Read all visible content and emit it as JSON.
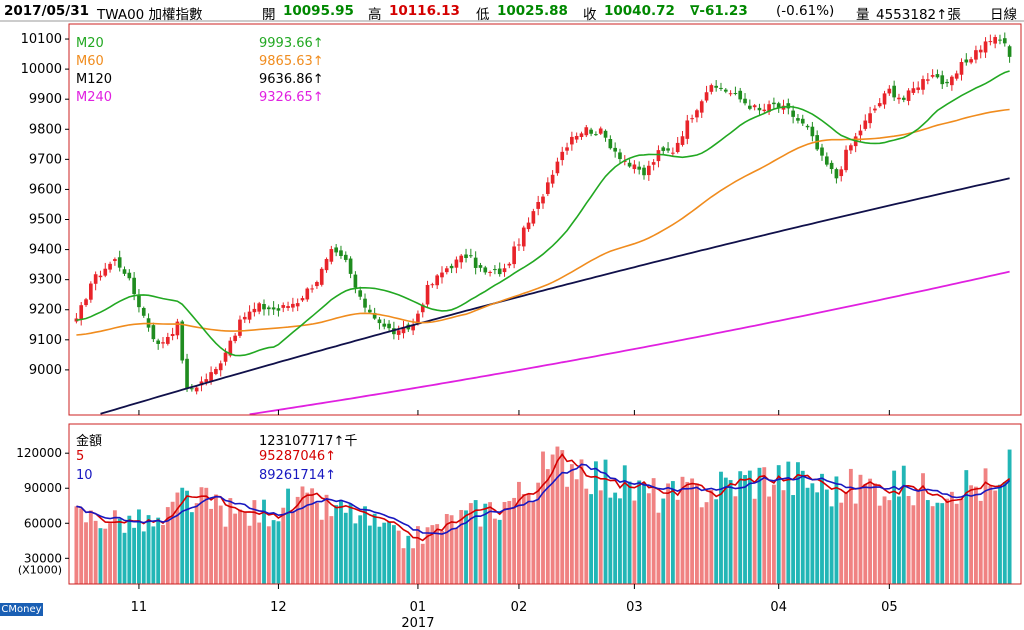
{
  "header": {
    "date": "2017/05/31",
    "symbol": "TWA00 加權指數",
    "open_label": "開",
    "open": "10095.95",
    "high_label": "高",
    "high": "10116.13",
    "low_label": "低",
    "low": "10025.88",
    "close_label": "收",
    "close": "10040.72",
    "change": "∇-61.23",
    "change_pct": "(-0.61%)",
    "volume_label": "量",
    "volume": "4553182↑張",
    "period": "日線"
  },
  "price_legend": [
    {
      "name": "M20",
      "value": "9993.66↑",
      "color": "#22a822"
    },
    {
      "name": "M60",
      "value": "9865.63↑",
      "color": "#f08c1e"
    },
    {
      "name": "M120",
      "value": "9636.86↑",
      "color": "#000000"
    },
    {
      "name": "M240",
      "value": "9326.65↑",
      "color": "#e020e0"
    }
  ],
  "volume_legend": [
    {
      "name": "金額",
      "value": "123107717↑千",
      "color": "#000000"
    },
    {
      "name": "5",
      "value": "95287046↑",
      "color": "#d40000"
    },
    {
      "name": "10",
      "value": "89261714↑",
      "color": "#1818c0"
    }
  ],
  "brand": "CMoney",
  "colors": {
    "up": "#e8242a",
    "down": "#1f8c1f",
    "vol_up": "#f08282",
    "vol_down": "#22b6b6",
    "ma20": "#22a822",
    "ma60": "#f08c1e",
    "ma120": "#10104a",
    "ma240": "#e020e0",
    "vol_ma5": "#d40000",
    "vol_ma10": "#1818c0",
    "frame": "#cc2020"
  },
  "chart_data": [
    {
      "type": "candlestick",
      "title": "TWA00 加權指數 日線",
      "y_ticks": [
        9000,
        9100,
        9200,
        9300,
        9400,
        9500,
        9600,
        9700,
        9800,
        9900,
        10000,
        10100
      ],
      "ylim": [
        8850,
        10150
      ],
      "month_labels": [
        {
          "label": "11",
          "index": 13
        },
        {
          "label": "12",
          "index": 42
        },
        {
          "label": "01",
          "index": 71
        },
        {
          "label": "02",
          "index": 92
        },
        {
          "label": "03",
          "index": 116
        },
        {
          "label": "04",
          "index": 146
        },
        {
          "label": "05",
          "index": 169
        }
      ],
      "year_label": {
        "label": "2017",
        "index": 71
      },
      "n_days": 195,
      "anchors": [
        [
          0,
          9160
        ],
        [
          3,
          9290
        ],
        [
          6,
          9340
        ],
        [
          8,
          9365
        ],
        [
          10,
          9330
        ],
        [
          14,
          9180
        ],
        [
          17,
          9080
        ],
        [
          21,
          9150
        ],
        [
          23,
          8930
        ],
        [
          26,
          8960
        ],
        [
          29,
          9000
        ],
        [
          32,
          9100
        ],
        [
          35,
          9180
        ],
        [
          38,
          9210
        ],
        [
          42,
          9200
        ],
        [
          46,
          9230
        ],
        [
          50,
          9300
        ],
        [
          53,
          9390
        ],
        [
          56,
          9360
        ],
        [
          59,
          9230
        ],
        [
          62,
          9180
        ],
        [
          64,
          9140
        ],
        [
          67,
          9120
        ],
        [
          70,
          9150
        ],
        [
          73,
          9270
        ],
        [
          77,
          9340
        ],
        [
          81,
          9380
        ],
        [
          85,
          9320
        ],
        [
          89,
          9330
        ],
        [
          92,
          9430
        ],
        [
          96,
          9550
        ],
        [
          100,
          9700
        ],
        [
          103,
          9780
        ],
        [
          106,
          9800
        ],
        [
          109,
          9790
        ],
        [
          112,
          9730
        ],
        [
          115,
          9680
        ],
        [
          118,
          9650
        ],
        [
          121,
          9720
        ],
        [
          124,
          9730
        ],
        [
          128,
          9850
        ],
        [
          131,
          9930
        ],
        [
          134,
          9940
        ],
        [
          138,
          9900
        ],
        [
          142,
          9860
        ],
        [
          145,
          9880
        ],
        [
          148,
          9860
        ],
        [
          152,
          9800
        ],
        [
          155,
          9700
        ],
        [
          158,
          9640
        ],
        [
          160,
          9720
        ],
        [
          163,
          9800
        ],
        [
          166,
          9870
        ],
        [
          169,
          9930
        ],
        [
          172,
          9900
        ],
        [
          175,
          9950
        ],
        [
          178,
          9990
        ],
        [
          181,
          9940
        ],
        [
          184,
          10010
        ],
        [
          187,
          10060
        ],
        [
          190,
          10100
        ],
        [
          193,
          10090
        ],
        [
          194,
          10040.72
        ]
      ],
      "ma_end_values": {
        "M20": 9993.66,
        "M60": 9865.63,
        "M120": 9636.86,
        "M240": 9326.65
      },
      "ma_start_values": {
        "M20": 9165,
        "M60": 9115,
        "M120": 8830,
        "M240": 8770
      }
    },
    {
      "type": "bar",
      "title": "金額",
      "y_ticks": [
        30000,
        60000,
        90000,
        120000
      ],
      "y_unit": "(X1000)",
      "ylim": [
        8000,
        145000
      ],
      "anchors": [
        [
          0,
          66000
        ],
        [
          10,
          62000
        ],
        [
          18,
          58000
        ],
        [
          22,
          82000
        ],
        [
          28,
          75000
        ],
        [
          34,
          66000
        ],
        [
          40,
          71000
        ],
        [
          46,
          78000
        ],
        [
          52,
          72000
        ],
        [
          58,
          68000
        ],
        [
          64,
          54000
        ],
        [
          68,
          44000
        ],
        [
          72,
          50000
        ],
        [
          78,
          62000
        ],
        [
          84,
          70000
        ],
        [
          88,
          75000
        ],
        [
          92,
          84000
        ],
        [
          96,
          100000
        ],
        [
          100,
          110000
        ],
        [
          104,
          116000
        ],
        [
          108,
          102000
        ],
        [
          112,
          96000
        ],
        [
          118,
          86000
        ],
        [
          124,
          82000
        ],
        [
          130,
          88000
        ],
        [
          136,
          94000
        ],
        [
          140,
          98000
        ],
        [
          146,
          100000
        ],
        [
          152,
          96000
        ],
        [
          158,
          88000
        ],
        [
          164,
          92000
        ],
        [
          170,
          94000
        ],
        [
          176,
          88000
        ],
        [
          182,
          96000
        ],
        [
          188,
          92000
        ],
        [
          194,
          96000
        ]
      ],
      "last_values": [
        92000,
        88000,
        93000,
        95287,
        123108
      ]
    }
  ]
}
